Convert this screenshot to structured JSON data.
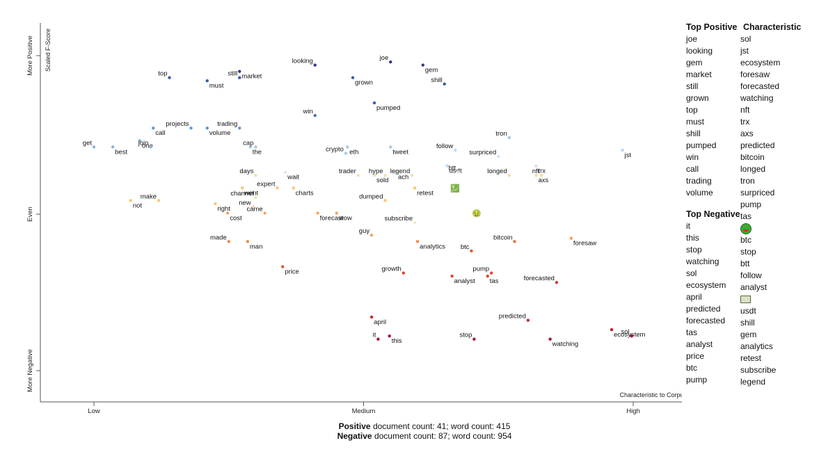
{
  "chart_data": {
    "type": "scatter",
    "xlabel": "Characteristic to Corpus",
    "ylabel": "Scaled F-Score",
    "x_ticks": [
      "Low",
      "Medium",
      "High"
    ],
    "y_ticks": [
      "More Negative",
      "Even",
      "More Positive"
    ],
    "xlim": [
      0,
      1
    ],
    "ylim": [
      0,
      1
    ],
    "points": [
      {
        "term": "joe",
        "x": 0.55,
        "y": 0.98,
        "color": "#2e3a8c"
      },
      {
        "term": "gem",
        "x": 0.61,
        "y": 0.97,
        "color": "#2e3a8c"
      },
      {
        "term": "looking",
        "x": 0.41,
        "y": 0.97,
        "color": "#2e3a8c"
      },
      {
        "term": "market",
        "x": 0.27,
        "y": 0.95,
        "color": "#2e3a8c"
      },
      {
        "term": "top",
        "x": 0.14,
        "y": 0.93,
        "color": "#3a5ba8"
      },
      {
        "term": "must",
        "x": 0.21,
        "y": 0.92,
        "color": "#3a5ba8"
      },
      {
        "term": "still",
        "x": 0.27,
        "y": 0.93,
        "color": "#3a5ba8"
      },
      {
        "term": "grown",
        "x": 0.48,
        "y": 0.93,
        "color": "#3a5ba8"
      },
      {
        "term": "shill",
        "x": 0.65,
        "y": 0.91,
        "color": "#3a5ba8"
      },
      {
        "term": "pumped",
        "x": 0.52,
        "y": 0.85,
        "color": "#3a5ba8"
      },
      {
        "term": "win",
        "x": 0.41,
        "y": 0.81,
        "color": "#4a6fb5"
      },
      {
        "term": "call",
        "x": 0.11,
        "y": 0.77,
        "color": "#6a96d0"
      },
      {
        "term": "projects",
        "x": 0.18,
        "y": 0.77,
        "color": "#6a96d0"
      },
      {
        "term": "volume",
        "x": 0.21,
        "y": 0.77,
        "color": "#6a96d0"
      },
      {
        "term": "trading",
        "x": 0.27,
        "y": 0.77,
        "color": "#6a96d0"
      },
      {
        "term": "one",
        "x": 0.085,
        "y": 0.73,
        "color": "#8cb4e0"
      },
      {
        "term": "get",
        "x": 0.0,
        "y": 0.71,
        "color": "#8cb4e0"
      },
      {
        "term": "best",
        "x": 0.035,
        "y": 0.71,
        "color": "#8cb4e0"
      },
      {
        "term": "join",
        "x": 0.105,
        "y": 0.71,
        "color": "#8cb4e0"
      },
      {
        "term": "the",
        "x": 0.29,
        "y": 0.71,
        "color": "#a6c8ea"
      },
      {
        "term": "cap",
        "x": 0.3,
        "y": 0.71,
        "color": "#a6c8ea"
      },
      {
        "term": "eth",
        "x": 0.47,
        "y": 0.71,
        "color": "#a6c8ea"
      },
      {
        "term": "crypto",
        "x": 0.467,
        "y": 0.69,
        "color": "#a6c8ea"
      },
      {
        "term": "tweet",
        "x": 0.55,
        "y": 0.71,
        "color": "#a6c8ea"
      },
      {
        "term": "tron",
        "x": 0.77,
        "y": 0.74,
        "color": "#a6c8ea"
      },
      {
        "term": "jst",
        "x": 0.98,
        "y": 0.7,
        "color": "#bcd6ef"
      },
      {
        "term": "follow",
        "x": 0.67,
        "y": 0.7,
        "color": "#bcd6ef"
      },
      {
        "term": "usdt",
        "x": 0.655,
        "y": 0.65,
        "color": "#bcd6ef"
      },
      {
        "term": "surpriced",
        "x": 0.75,
        "y": 0.68,
        "color": "#cfe2f3"
      },
      {
        "term": "trx",
        "x": 0.82,
        "y": 0.65,
        "color": "#cfe2f3"
      },
      {
        "term": "longed",
        "x": 0.77,
        "y": 0.62,
        "color": "#f0dea0"
      },
      {
        "term": "axs",
        "x": 0.82,
        "y": 0.62,
        "color": "#f0dea0"
      },
      {
        "term": "nft",
        "x": 0.83,
        "y": 0.62,
        "color": "#f0dea0"
      },
      {
        "term": "wait",
        "x": 0.355,
        "y": 0.63,
        "color": "#dbe8f4"
      },
      {
        "term": "days",
        "x": 0.3,
        "y": 0.62,
        "color": "#f3e2a8"
      },
      {
        "term": "went",
        "x": 0.275,
        "y": 0.58,
        "color": "#f6c878"
      },
      {
        "term": "expert",
        "x": 0.34,
        "y": 0.58,
        "color": "#f6c878"
      },
      {
        "term": "charts",
        "x": 0.37,
        "y": 0.58,
        "color": "#f6c878"
      },
      {
        "term": "trader",
        "x": 0.49,
        "y": 0.62,
        "color": "#f3e2a8"
      },
      {
        "term": "sold",
        "x": 0.52,
        "y": 0.62,
        "color": "#f3e2a8"
      },
      {
        "term": "hype",
        "x": 0.54,
        "y": 0.62,
        "color": "#f3e2a8"
      },
      {
        "term": "ach",
        "x": 0.56,
        "y": 0.63,
        "color": "#dbe8f4"
      },
      {
        "term": "legend",
        "x": 0.59,
        "y": 0.62,
        "color": "#f3e2a8"
      },
      {
        "term": "retest",
        "x": 0.595,
        "y": 0.58,
        "color": "#f6c878"
      },
      {
        "term": "btt",
        "x": 0.675,
        "y": 0.63,
        "color": "#dbe8f4"
      },
      {
        "term": "💹",
        "x": 0.67,
        "y": 0.58,
        "color": "#f3e2a8"
      },
      {
        "term": "channel",
        "x": 0.3,
        "y": 0.55,
        "color": "#f3e2a8"
      },
      {
        "term": "not",
        "x": 0.068,
        "y": 0.54,
        "color": "#f6c878"
      },
      {
        "term": "make",
        "x": 0.12,
        "y": 0.54,
        "color": "#f6c878"
      },
      {
        "term": "right",
        "x": 0.225,
        "y": 0.53,
        "color": "#f6c878"
      },
      {
        "term": "new",
        "x": 0.295,
        "y": 0.52,
        "color": "#f3e2a8"
      },
      {
        "term": "forecast",
        "x": 0.415,
        "y": 0.5,
        "color": "#f4a460"
      },
      {
        "term": "dumped",
        "x": 0.54,
        "y": 0.54,
        "color": "#f6c878"
      },
      {
        "term": "cost",
        "x": 0.248,
        "y": 0.5,
        "color": "#f4a460"
      },
      {
        "term": "came",
        "x": 0.317,
        "y": 0.5,
        "color": "#f4a460"
      },
      {
        "term": "wow",
        "x": 0.45,
        "y": 0.5,
        "color": "#f4a460"
      },
      {
        "term": "subscribe",
        "x": 0.595,
        "y": 0.47,
        "color": "#f6e7c8"
      },
      {
        "term": "🤢",
        "x": 0.71,
        "y": 0.5,
        "color": "#f08848"
      },
      {
        "term": "made",
        "x": 0.25,
        "y": 0.41,
        "color": "#ee8850"
      },
      {
        "term": "man",
        "x": 0.285,
        "y": 0.41,
        "color": "#ee8850"
      },
      {
        "term": "guy",
        "x": 0.515,
        "y": 0.43,
        "color": "#f4a460"
      },
      {
        "term": "analytics",
        "x": 0.6,
        "y": 0.41,
        "color": "#ee8850"
      },
      {
        "term": "bitcoin",
        "x": 0.78,
        "y": 0.41,
        "color": "#ee7040"
      },
      {
        "term": "foresaw",
        "x": 0.885,
        "y": 0.42,
        "color": "#f4a460"
      },
      {
        "term": "btc",
        "x": 0.7,
        "y": 0.38,
        "color": "#e05a35"
      },
      {
        "term": "price",
        "x": 0.35,
        "y": 0.33,
        "color": "#e05a35"
      },
      {
        "term": "growth",
        "x": 0.574,
        "y": 0.31,
        "color": "#d94a30"
      },
      {
        "term": "analyst",
        "x": 0.664,
        "y": 0.3,
        "color": "#d94a30"
      },
      {
        "term": "pump",
        "x": 0.737,
        "y": 0.31,
        "color": "#d94a30"
      },
      {
        "term": "tas",
        "x": 0.73,
        "y": 0.3,
        "color": "#d94a30"
      },
      {
        "term": "forecasted",
        "x": 0.858,
        "y": 0.28,
        "color": "#d43c2c"
      },
      {
        "term": "april",
        "x": 0.515,
        "y": 0.17,
        "color": "#c8282a"
      },
      {
        "term": "predicted",
        "x": 0.805,
        "y": 0.16,
        "color": "#c8282a"
      },
      {
        "term": "ecosystem",
        "x": 0.96,
        "y": 0.13,
        "color": "#b8192a"
      },
      {
        "term": "it",
        "x": 0.527,
        "y": 0.1,
        "color": "#b0102a"
      },
      {
        "term": "this",
        "x": 0.548,
        "y": 0.11,
        "color": "#b0102a"
      },
      {
        "term": "stop",
        "x": 0.705,
        "y": 0.1,
        "color": "#b0102a"
      },
      {
        "term": "watching",
        "x": 0.846,
        "y": 0.1,
        "color": "#b0102a"
      },
      {
        "term": "sol",
        "x": 0.997,
        "y": 0.11,
        "color": "#a8072a"
      }
    ]
  },
  "footer": {
    "positive_label": "Positive",
    "positive_text": "document count: 41; word count: 415",
    "negative_label": "Negative",
    "negative_text": "document count: 87; word count: 954"
  },
  "top_positive": {
    "header": "Top Positive",
    "items": [
      "joe",
      "looking",
      "gem",
      "market",
      "still",
      "grown",
      "top",
      "must",
      "shill",
      "pumped",
      "win",
      "call",
      "trading",
      "volume"
    ]
  },
  "top_negative": {
    "header": "Top Negative",
    "items": [
      "it",
      "this",
      "stop",
      "watching",
      "sol",
      "ecosystem",
      "april",
      "predicted",
      "forecasted",
      "tas",
      "analyst",
      "price",
      "btc",
      "pump"
    ]
  },
  "characteristic": {
    "header": "Characteristic",
    "items": [
      "sol",
      "jst",
      "ecosystem",
      "foresaw",
      "forecasted",
      "watching",
      "nft",
      "trx",
      "axs",
      "predicted",
      "bitcoin",
      "longed",
      "tron",
      "surpriced",
      "pump",
      "tas",
      "🤢",
      "btc",
      "stop",
      "btt",
      "follow",
      "analyst",
      "💹",
      "usdt",
      "shill",
      "gem",
      "analytics",
      "retest",
      "subscribe",
      "legend"
    ]
  }
}
